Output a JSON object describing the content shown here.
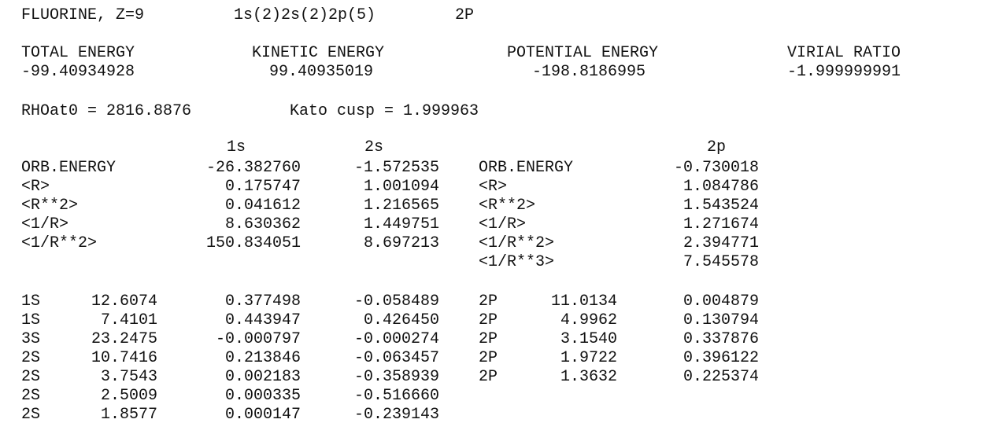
{
  "header": {
    "element": "FLUORINE, Z=9",
    "configuration": "1s(2)2s(2)2p(5)",
    "term": "2P"
  },
  "energies": {
    "labels": [
      "TOTAL ENERGY",
      "KINETIC ENERGY",
      "POTENTIAL ENERGY",
      "VIRIAL RATIO"
    ],
    "values": [
      "-99.40934928",
      "99.40935019",
      "-198.8186995",
      "-1.999999991"
    ]
  },
  "density": {
    "rho": "RHOat0 = 2816.8876",
    "kato": "Kato cusp = 1.999963"
  },
  "properties": {
    "s_headers": [
      "1s",
      "2s"
    ],
    "p_header": "2p",
    "rows": [
      {
        "label": "ORB.ENERGY",
        "s1": "-26.382760",
        "s2": "-1.572535",
        "plabel": "ORB.ENERGY",
        "p": "-0.730018"
      },
      {
        "label": "<R>",
        "s1": "0.175747",
        "s2": "1.001094",
        "plabel": "<R>",
        "p": "1.084786"
      },
      {
        "label": "<R**2>",
        "s1": "0.041612",
        "s2": "1.216565",
        "plabel": "<R**2>",
        "p": "1.543524"
      },
      {
        "label": "<1/R>",
        "s1": "8.630362",
        "s2": "1.449751",
        "plabel": "<1/R>",
        "p": "1.271674"
      },
      {
        "label": "<1/R**2>",
        "s1": "150.834051",
        "s2": "8.697213",
        "plabel": "<1/R**2>",
        "p": "2.394771"
      },
      {
        "label": "",
        "s1": "",
        "s2": "",
        "plabel": "<1/R**3>",
        "p": "7.545578"
      }
    ]
  },
  "basis": {
    "s_rows": [
      {
        "type": "1S",
        "exp": "12.6074",
        "c1": "0.377498",
        "c2": "-0.058489"
      },
      {
        "type": "1S",
        "exp": "7.4101",
        "c1": "0.443947",
        "c2": "0.426450"
      },
      {
        "type": "3S",
        "exp": "23.2475",
        "c1": "-0.000797",
        "c2": "-0.000274"
      },
      {
        "type": "2S",
        "exp": "10.7416",
        "c1": "0.213846",
        "c2": "-0.063457"
      },
      {
        "type": "2S",
        "exp": "3.7543",
        "c1": "0.002183",
        "c2": "-0.358939"
      },
      {
        "type": "2S",
        "exp": "2.5009",
        "c1": "0.000335",
        "c2": "-0.516660"
      },
      {
        "type": "2S",
        "exp": "1.8577",
        "c1": "0.000147",
        "c2": "-0.239143"
      }
    ],
    "p_rows": [
      {
        "type": "2P",
        "exp": "11.0134",
        "c": "0.004879"
      },
      {
        "type": "2P",
        "exp": "4.9962",
        "c": "0.130794"
      },
      {
        "type": "2P",
        "exp": "3.1540",
        "c": "0.337876"
      },
      {
        "type": "2P",
        "exp": "1.9722",
        "c": "0.396122"
      },
      {
        "type": "2P",
        "exp": "1.3632",
        "c": "0.225374"
      }
    ]
  }
}
